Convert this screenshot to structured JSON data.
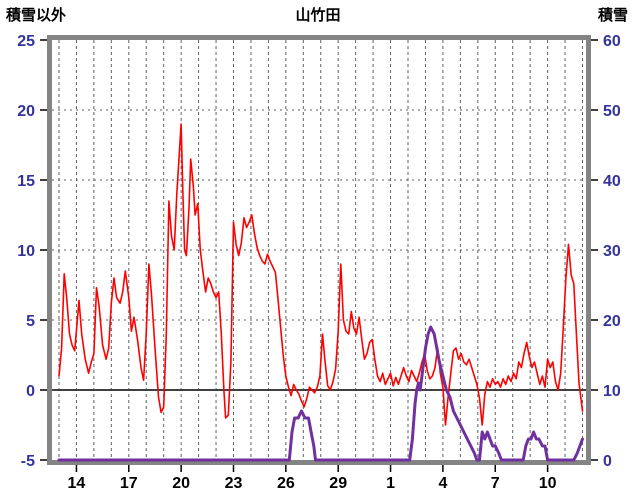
{
  "chart_data": {
    "type": "line",
    "title": "山竹田",
    "left_axis": {
      "label": "積雪以外",
      "min": -5,
      "max": 25,
      "ticks": [
        25,
        20,
        15,
        10,
        5,
        0,
        -5
      ]
    },
    "right_axis": {
      "label": "積雪",
      "min": 0,
      "max": 60,
      "ticks": [
        60,
        50,
        40,
        30,
        20,
        10,
        0
      ]
    },
    "x_axis": {
      "min": 12.6,
      "max": 43.2,
      "gridline_step": 1,
      "tick_positions": [
        14,
        17,
        20,
        23,
        26,
        29,
        32,
        35,
        38,
        41
      ],
      "tick_labels": [
        "14",
        "17",
        "20",
        "23",
        "26",
        "29",
        "1",
        "4",
        "7",
        "10"
      ]
    },
    "colors": {
      "red_line": "#ff0000",
      "snow_line": "#7030a0",
      "axis_number": "#333399",
      "x_number": "#000000",
      "frame": "#848484",
      "grid": "#606060",
      "zero_line": "#404040",
      "tick_mark": "#000000"
    },
    "series": [
      {
        "name": "積雪以外",
        "axis": "left",
        "color": "#ff0000",
        "width": 1.6,
        "points": [
          [
            13.0,
            1.0
          ],
          [
            13.15,
            3.0
          ],
          [
            13.3,
            8.3
          ],
          [
            13.45,
            6.5
          ],
          [
            13.6,
            4.0
          ],
          [
            13.75,
            3.2
          ],
          [
            13.9,
            2.8
          ],
          [
            14.0,
            4.2
          ],
          [
            14.15,
            6.4
          ],
          [
            14.3,
            4.0
          ],
          [
            14.5,
            2.2
          ],
          [
            14.7,
            1.2
          ],
          [
            14.85,
            2.0
          ],
          [
            15.0,
            2.6
          ],
          [
            15.15,
            7.3
          ],
          [
            15.3,
            6.0
          ],
          [
            15.5,
            3.2
          ],
          [
            15.7,
            2.2
          ],
          [
            15.85,
            3.0
          ],
          [
            16.0,
            6.2
          ],
          [
            16.15,
            8.0
          ],
          [
            16.3,
            6.6
          ],
          [
            16.5,
            6.2
          ],
          [
            16.65,
            7.0
          ],
          [
            16.8,
            8.5
          ],
          [
            17.0,
            6.6
          ],
          [
            17.15,
            4.2
          ],
          [
            17.3,
            5.2
          ],
          [
            17.5,
            3.6
          ],
          [
            17.7,
            1.6
          ],
          [
            17.85,
            0.7
          ],
          [
            18.0,
            4.0
          ],
          [
            18.15,
            9.0
          ],
          [
            18.3,
            6.8
          ],
          [
            18.5,
            3.0
          ],
          [
            18.7,
            -0.5
          ],
          [
            18.85,
            -1.6
          ],
          [
            19.0,
            -1.2
          ],
          [
            19.15,
            4.0
          ],
          [
            19.3,
            13.5
          ],
          [
            19.45,
            11.0
          ],
          [
            19.6,
            10.0
          ],
          [
            19.75,
            14.0
          ],
          [
            19.9,
            17.0
          ],
          [
            20.0,
            19.0
          ],
          [
            20.1,
            14.0
          ],
          [
            20.2,
            10.0
          ],
          [
            20.3,
            9.6
          ],
          [
            20.45,
            13.0
          ],
          [
            20.55,
            16.5
          ],
          [
            20.7,
            14.5
          ],
          [
            20.8,
            12.5
          ],
          [
            20.95,
            13.3
          ],
          [
            21.1,
            10.0
          ],
          [
            21.25,
            8.4
          ],
          [
            21.4,
            7.0
          ],
          [
            21.55,
            8.0
          ],
          [
            21.7,
            7.6
          ],
          [
            21.85,
            7.0
          ],
          [
            22.0,
            6.6
          ],
          [
            22.15,
            7.0
          ],
          [
            22.3,
            4.0
          ],
          [
            22.45,
            0.0
          ],
          [
            22.55,
            -2.0
          ],
          [
            22.7,
            -1.8
          ],
          [
            22.85,
            2.0
          ],
          [
            23.0,
            12.0
          ],
          [
            23.15,
            10.4
          ],
          [
            23.3,
            9.6
          ],
          [
            23.45,
            10.5
          ],
          [
            23.6,
            12.3
          ],
          [
            23.75,
            11.6
          ],
          [
            23.9,
            12.0
          ],
          [
            24.05,
            12.5
          ],
          [
            24.2,
            11.2
          ],
          [
            24.35,
            10.2
          ],
          [
            24.5,
            9.6
          ],
          [
            24.65,
            9.2
          ],
          [
            24.8,
            9.0
          ],
          [
            24.95,
            9.7
          ],
          [
            25.1,
            9.2
          ],
          [
            25.25,
            8.8
          ],
          [
            25.4,
            8.4
          ],
          [
            25.55,
            6.5
          ],
          [
            25.7,
            4.5
          ],
          [
            25.85,
            2.5
          ],
          [
            26.0,
            1.0
          ],
          [
            26.15,
            0.2
          ],
          [
            26.3,
            -0.4
          ],
          [
            26.45,
            0.4
          ],
          [
            26.6,
            0.0
          ],
          [
            26.75,
            -0.3
          ],
          [
            26.9,
            -0.8
          ],
          [
            27.05,
            -1.2
          ],
          [
            27.2,
            -0.6
          ],
          [
            27.35,
            0.2
          ],
          [
            27.5,
            0.0
          ],
          [
            27.65,
            -0.2
          ],
          [
            27.8,
            0.2
          ],
          [
            27.95,
            1.0
          ],
          [
            28.1,
            4.0
          ],
          [
            28.25,
            2.0
          ],
          [
            28.4,
            0.3
          ],
          [
            28.55,
            0.0
          ],
          [
            28.7,
            0.6
          ],
          [
            28.85,
            1.5
          ],
          [
            29.0,
            4.2
          ],
          [
            29.15,
            9.0
          ],
          [
            29.3,
            5.0
          ],
          [
            29.45,
            4.2
          ],
          [
            29.6,
            4.0
          ],
          [
            29.75,
            5.6
          ],
          [
            29.9,
            4.4
          ],
          [
            30.05,
            4.0
          ],
          [
            30.2,
            5.2
          ],
          [
            30.35,
            3.6
          ],
          [
            30.5,
            2.2
          ],
          [
            30.65,
            2.6
          ],
          [
            30.8,
            3.4
          ],
          [
            30.95,
            3.6
          ],
          [
            31.1,
            2.2
          ],
          [
            31.25,
            1.0
          ],
          [
            31.4,
            0.6
          ],
          [
            31.55,
            1.2
          ],
          [
            31.7,
            0.4
          ],
          [
            31.85,
            0.8
          ],
          [
            32.0,
            1.2
          ],
          [
            32.15,
            0.3
          ],
          [
            32.3,
            0.9
          ],
          [
            32.45,
            0.4
          ],
          [
            32.6,
            1.0
          ],
          [
            32.75,
            1.6
          ],
          [
            32.9,
            1.0
          ],
          [
            33.05,
            0.6
          ],
          [
            33.2,
            1.4
          ],
          [
            33.35,
            1.0
          ],
          [
            33.5,
            0.6
          ],
          [
            33.65,
            1.2
          ],
          [
            33.8,
            2.0
          ],
          [
            33.95,
            2.6
          ],
          [
            34.1,
            1.4
          ],
          [
            34.25,
            0.8
          ],
          [
            34.4,
            1.0
          ],
          [
            34.55,
            1.6
          ],
          [
            34.7,
            3.0
          ],
          [
            34.85,
            1.2
          ],
          [
            35.0,
            0.2
          ],
          [
            35.15,
            -2.5
          ],
          [
            35.3,
            -0.5
          ],
          [
            35.45,
            1.2
          ],
          [
            35.6,
            2.8
          ],
          [
            35.75,
            3.0
          ],
          [
            35.9,
            2.2
          ],
          [
            36.05,
            2.6
          ],
          [
            36.2,
            2.0
          ],
          [
            36.35,
            1.8
          ],
          [
            36.5,
            2.2
          ],
          [
            36.65,
            1.6
          ],
          [
            36.8,
            1.0
          ],
          [
            36.95,
            0.4
          ],
          [
            37.1,
            -0.6
          ],
          [
            37.25,
            -2.5
          ],
          [
            37.4,
            -0.3
          ],
          [
            37.55,
            0.6
          ],
          [
            37.7,
            0.2
          ],
          [
            37.85,
            0.8
          ],
          [
            38.0,
            0.4
          ],
          [
            38.15,
            0.6
          ],
          [
            38.3,
            0.2
          ],
          [
            38.45,
            0.8
          ],
          [
            38.6,
            0.4
          ],
          [
            38.75,
            1.0
          ],
          [
            38.9,
            0.6
          ],
          [
            39.05,
            1.2
          ],
          [
            39.2,
            0.8
          ],
          [
            39.35,
            2.0
          ],
          [
            39.5,
            1.6
          ],
          [
            39.65,
            2.6
          ],
          [
            39.8,
            3.4
          ],
          [
            39.95,
            2.4
          ],
          [
            40.1,
            1.6
          ],
          [
            40.25,
            2.0
          ],
          [
            40.4,
            1.2
          ],
          [
            40.55,
            0.4
          ],
          [
            40.7,
            1.0
          ],
          [
            40.85,
            0.2
          ],
          [
            41.0,
            2.2
          ],
          [
            41.15,
            1.6
          ],
          [
            41.3,
            2.0
          ],
          [
            41.45,
            0.6
          ],
          [
            41.6,
            0.0
          ],
          [
            41.75,
            1.2
          ],
          [
            41.9,
            4.5
          ],
          [
            42.05,
            8.0
          ],
          [
            42.2,
            10.4
          ],
          [
            42.35,
            8.2
          ],
          [
            42.5,
            7.6
          ],
          [
            42.65,
            4.0
          ],
          [
            42.8,
            0.5
          ],
          [
            43.0,
            -1.5
          ]
        ]
      },
      {
        "name": "積雪",
        "axis": "right",
        "color": "#7030a0",
        "width": 3,
        "points": [
          [
            13.0,
            0
          ],
          [
            26.0,
            0
          ],
          [
            26.2,
            0
          ],
          [
            26.35,
            4
          ],
          [
            26.5,
            6
          ],
          [
            26.7,
            6
          ],
          [
            26.9,
            7
          ],
          [
            27.1,
            6
          ],
          [
            27.3,
            6
          ],
          [
            27.45,
            4
          ],
          [
            27.6,
            2
          ],
          [
            27.7,
            0
          ],
          [
            28.0,
            0
          ],
          [
            33.1,
            0
          ],
          [
            33.25,
            3
          ],
          [
            33.4,
            8
          ],
          [
            33.5,
            10
          ],
          [
            33.6,
            11
          ],
          [
            33.7,
            10
          ],
          [
            33.85,
            13
          ],
          [
            34.0,
            16
          ],
          [
            34.15,
            18
          ],
          [
            34.3,
            19
          ],
          [
            34.5,
            18
          ],
          [
            34.65,
            16
          ],
          [
            34.8,
            14
          ],
          [
            35.0,
            12
          ],
          [
            35.2,
            10
          ],
          [
            35.4,
            9
          ],
          [
            35.6,
            7
          ],
          [
            35.8,
            6
          ],
          [
            36.0,
            5
          ],
          [
            36.2,
            4
          ],
          [
            36.4,
            3
          ],
          [
            36.6,
            2
          ],
          [
            36.8,
            1
          ],
          [
            36.95,
            0
          ],
          [
            37.1,
            0
          ],
          [
            37.25,
            4
          ],
          [
            37.4,
            3
          ],
          [
            37.55,
            4
          ],
          [
            37.7,
            3
          ],
          [
            37.85,
            2
          ],
          [
            38.0,
            2
          ],
          [
            38.2,
            1
          ],
          [
            38.35,
            0
          ],
          [
            39.6,
            0
          ],
          [
            39.75,
            2
          ],
          [
            39.9,
            3
          ],
          [
            40.05,
            3
          ],
          [
            40.2,
            4
          ],
          [
            40.35,
            3
          ],
          [
            40.5,
            3
          ],
          [
            40.7,
            2
          ],
          [
            40.85,
            2
          ],
          [
            41.0,
            0
          ],
          [
            42.5,
            0
          ],
          [
            42.7,
            1
          ],
          [
            42.85,
            2
          ],
          [
            43.0,
            3
          ]
        ]
      }
    ]
  }
}
